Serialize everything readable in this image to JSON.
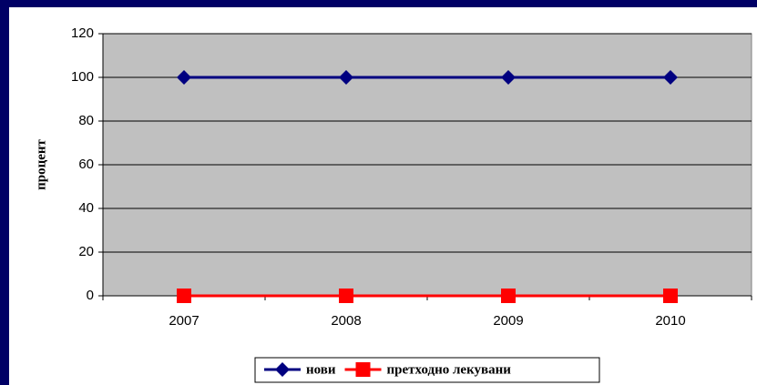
{
  "chart_data": {
    "type": "line",
    "y_label": "процент",
    "categories": [
      "2007",
      "2008",
      "2009",
      "2010"
    ],
    "series": [
      {
        "name": "нови",
        "color": "#000080",
        "marker": "diamond",
        "values": [
          100,
          100,
          100,
          100
        ]
      },
      {
        "name": "претходно лекувани",
        "color": "#ff0000",
        "marker": "square",
        "values": [
          0,
          0,
          0,
          0
        ]
      }
    ],
    "ylim": [
      0,
      120
    ],
    "yticks": [
      0,
      20,
      40,
      60,
      80,
      100,
      120
    ],
    "grid": true,
    "legend": "bottom"
  }
}
